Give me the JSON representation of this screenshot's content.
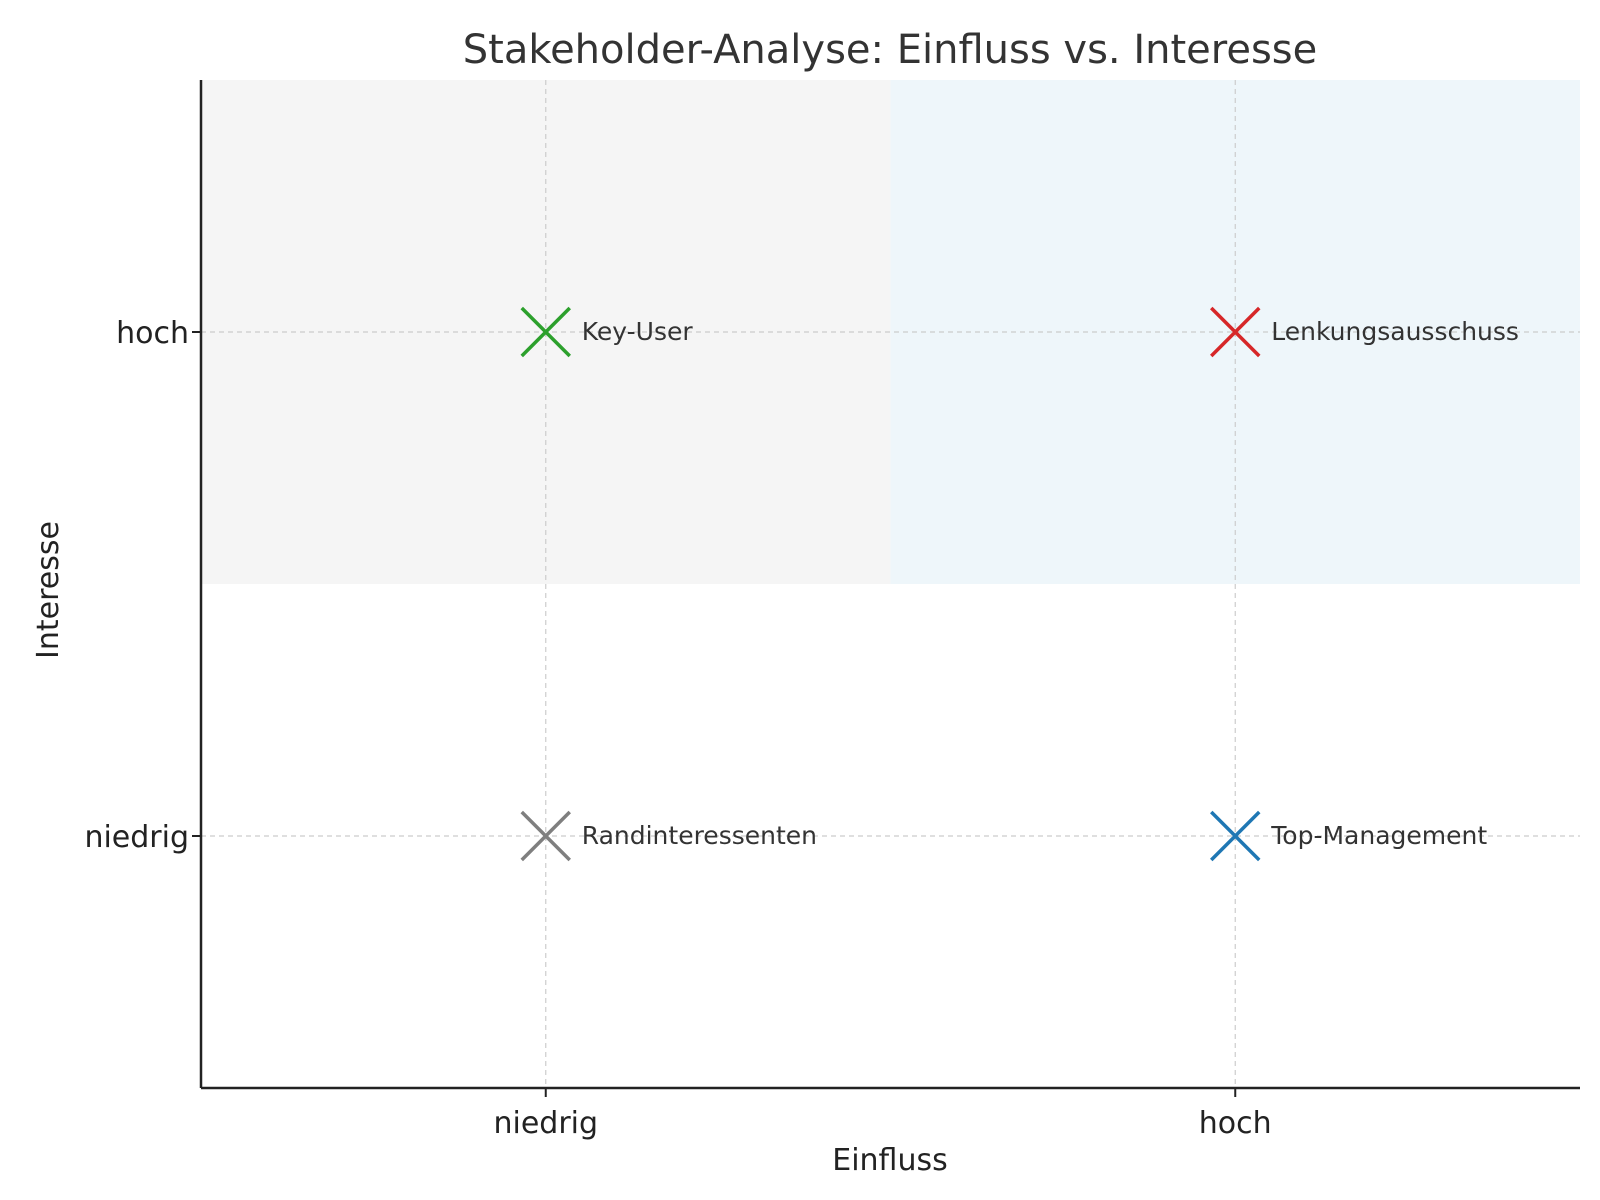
{
  "chart_data": {
    "type": "scatter",
    "title": "Stakeholder-Analyse: Einfluss vs. Interesse",
    "xlabel": "Einfluss",
    "ylabel": "Interesse",
    "x_categories": [
      "niedrig",
      "hoch"
    ],
    "y_categories": [
      "niedrig",
      "hoch"
    ],
    "xlim": [
      -0.5,
      1.5
    ],
    "ylim": [
      -0.5,
      1.5
    ],
    "grid": true,
    "marker": "x",
    "quadrant_shading": [
      {
        "x": [
          -0.5,
          0.5
        ],
        "y": [
          0.5,
          1.5
        ],
        "color": "#f5f5f5"
      },
      {
        "x": [
          0.5,
          1.5
        ],
        "y": [
          0.5,
          1.5
        ],
        "color": "#eef6fa"
      }
    ],
    "points": [
      {
        "label": "Randinteressenten",
        "x": "niedrig",
        "y": "niedrig",
        "color": "#7f7f7f"
      },
      {
        "label": "Key-User",
        "x": "niedrig",
        "y": "hoch",
        "color": "#2ca02c"
      },
      {
        "label": "Top-Management",
        "x": "hoch",
        "y": "niedrig",
        "color": "#1f77b4"
      },
      {
        "label": "Lenkungsausschuss",
        "x": "hoch",
        "y": "hoch",
        "color": "#d62728"
      }
    ]
  }
}
